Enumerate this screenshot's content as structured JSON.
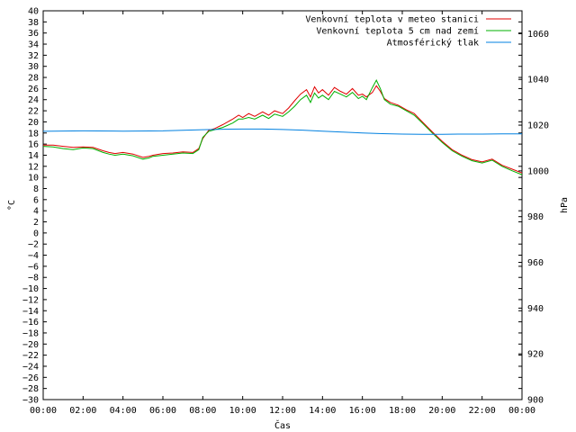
{
  "chart_data": {
    "type": "line",
    "xlabel": "Čas",
    "ylabel": "°C",
    "y2label": "hPa",
    "xlim": [
      0,
      24
    ],
    "ylim": [
      -30,
      40
    ],
    "y2lim": [
      900,
      1070
    ],
    "x_tick_labels": [
      "00:00",
      "02:00",
      "04:00",
      "06:00",
      "08:00",
      "10:00",
      "12:00",
      "14:00",
      "16:00",
      "18:00",
      "20:00",
      "22:00",
      "00:00"
    ],
    "y_ticks": [
      -30,
      -28,
      -26,
      -24,
      -22,
      -20,
      -18,
      -16,
      -14,
      -12,
      -10,
      -8,
      -6,
      -4,
      -2,
      0,
      2,
      4,
      6,
      8,
      10,
      12,
      14,
      16,
      18,
      20,
      22,
      24,
      26,
      28,
      30,
      32,
      34,
      36,
      38,
      40
    ],
    "y2_ticks": [
      900,
      920,
      940,
      960,
      980,
      1000,
      1020,
      1040,
      1060
    ],
    "grid": false,
    "legend_position": "top-right",
    "series": [
      {
        "name": "Venkovní teplota v meteo stanici",
        "color": "#e00000",
        "axis": "left",
        "x": [
          0,
          0.5,
          1,
          1.5,
          2,
          2.5,
          3,
          3.3,
          3.6,
          4,
          4.5,
          5,
          5.3,
          5.5,
          6,
          6.5,
          7,
          7.5,
          7.8,
          8,
          8.3,
          8.6,
          9,
          9.5,
          9.8,
          10,
          10.3,
          10.6,
          11,
          11.3,
          11.6,
          12,
          12.3,
          12.6,
          12.9,
          13.2,
          13.4,
          13.6,
          13.8,
          14,
          14.3,
          14.6,
          14.9,
          15.2,
          15.5,
          15.8,
          16,
          16.2,
          16.5,
          16.7,
          16.9,
          17.1,
          17.4,
          17.8,
          18.2,
          18.6,
          19,
          19.5,
          20,
          20.5,
          21,
          21.5,
          22,
          22.5,
          23,
          23.5,
          24
        ],
        "values": [
          15.8,
          15.8,
          15.6,
          15.4,
          15.5,
          15.4,
          14.8,
          14.5,
          14.3,
          14.5,
          14.2,
          13.6,
          13.8,
          14,
          14.3,
          14.4,
          14.6,
          14.5,
          15.2,
          17,
          18.5,
          18.8,
          19.5,
          20.5,
          21.2,
          20.8,
          21.5,
          21.0,
          21.8,
          21.2,
          22.0,
          21.5,
          22.5,
          23.8,
          25.0,
          25.8,
          24.5,
          26.3,
          25.2,
          25.8,
          24.8,
          26.2,
          25.5,
          25.0,
          26.0,
          24.8,
          25.0,
          24.5,
          25.3,
          26.5,
          25.5,
          24.2,
          23.5,
          23.0,
          22.2,
          21.5,
          20.0,
          18.2,
          16.5,
          15.0,
          14.0,
          13.2,
          12.8,
          13.3,
          12.2,
          11.5,
          10.8
        ]
      },
      {
        "name": "Venkovní teplota 5 cm nad zemí",
        "color": "#00b000",
        "axis": "left",
        "x": [
          0,
          0.5,
          1,
          1.5,
          2,
          2.5,
          3,
          3.3,
          3.6,
          4,
          4.5,
          5,
          5.3,
          5.5,
          6,
          6.5,
          7,
          7.5,
          7.8,
          8,
          8.3,
          8.6,
          9,
          9.5,
          9.8,
          10,
          10.3,
          10.6,
          11,
          11.3,
          11.6,
          12,
          12.3,
          12.6,
          12.9,
          13.2,
          13.4,
          13.6,
          13.8,
          14,
          14.3,
          14.6,
          14.9,
          15.2,
          15.5,
          15.8,
          16,
          16.2,
          16.5,
          16.7,
          16.9,
          17.1,
          17.4,
          17.8,
          18.2,
          18.6,
          19,
          19.5,
          20,
          20.5,
          21,
          21.5,
          22,
          22.5,
          23,
          23.5,
          24
        ],
        "values": [
          15.6,
          15.5,
          15.2,
          15.0,
          15.3,
          15.2,
          14.5,
          14.2,
          14.0,
          14.2,
          13.9,
          13.3,
          13.5,
          13.8,
          14.0,
          14.2,
          14.4,
          14.3,
          15.0,
          17.2,
          18.3,
          18.6,
          19.0,
          19.8,
          20.5,
          20.5,
          20.8,
          20.5,
          21.2,
          20.6,
          21.4,
          21.0,
          21.8,
          22.8,
          24.0,
          24.8,
          23.5,
          25.2,
          24.3,
          24.8,
          24.0,
          25.5,
          25.0,
          24.5,
          25.3,
          24.2,
          24.6,
          24.0,
          26.2,
          27.5,
          26.0,
          24.0,
          23.2,
          22.8,
          22.0,
          21.2,
          19.8,
          18.0,
          16.3,
          14.8,
          13.8,
          13.0,
          12.6,
          13.1,
          12.0,
          11.2,
          10.5
        ]
      },
      {
        "name": "Atmosférický tlak",
        "color": "#0080e0",
        "axis": "right",
        "x": [
          0,
          2,
          4,
          6,
          8,
          9,
          10,
          11,
          12,
          13,
          14,
          15,
          16,
          17,
          18,
          19,
          20,
          21,
          22,
          23,
          24
        ],
        "values": [
          1017.3,
          1017.5,
          1017.4,
          1017.5,
          1018.0,
          1018.2,
          1018.3,
          1018.3,
          1018.1,
          1017.8,
          1017.4,
          1017.0,
          1016.6,
          1016.3,
          1016.1,
          1016.0,
          1016.0,
          1016.1,
          1016.1,
          1016.2,
          1016.2
        ]
      }
    ]
  }
}
